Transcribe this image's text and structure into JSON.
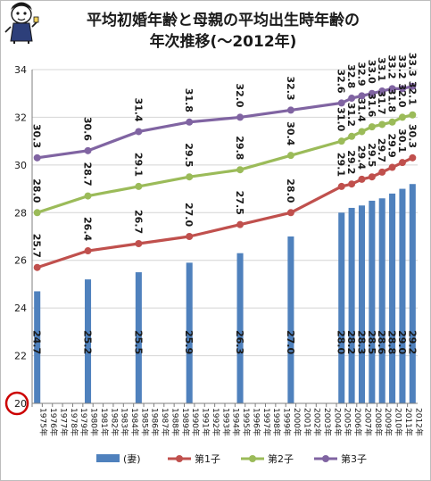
{
  "chart_data": {
    "type": "bar+line",
    "title": "平均初婚年齢と母親の平均出生時年齢の",
    "subtitle": "年次推移(〜2012年)",
    "ylim": [
      20,
      34
    ],
    "yticks": [
      "20",
      "22",
      "24",
      "26",
      "28",
      "30",
      "32",
      "34"
    ],
    "categories": [
      "1975年",
      "1976年",
      "1977年",
      "1978年",
      "1979年",
      "1980年",
      "1981年",
      "1982年",
      "1983年",
      "1984年",
      "1985年",
      "1986年",
      "1987年",
      "1988年",
      "1989年",
      "1990年",
      "1991年",
      "1992年",
      "1993年",
      "1994年",
      "1995年",
      "1996年",
      "1997年",
      "1998年",
      "1999年",
      "2000年",
      "2001年",
      "2002年",
      "2003年",
      "2004年",
      "2005年",
      "2006年",
      "2007年",
      "2008年",
      "2009年",
      "2010年",
      "2011年",
      "2012年"
    ],
    "bar_series": {
      "name": "(妻)",
      "color": "#4f81bd",
      "points": [
        {
          "x": "1975年",
          "y": 24.7,
          "label": "24.7"
        },
        {
          "x": "1980年",
          "y": 25.2,
          "label": "25.2"
        },
        {
          "x": "1985年",
          "y": 25.5,
          "label": "25.5"
        },
        {
          "x": "1990年",
          "y": 25.9,
          "label": "25.9"
        },
        {
          "x": "1995年",
          "y": 26.3,
          "label": "26.3"
        },
        {
          "x": "2000年",
          "y": 27.0,
          "label": "27.0"
        },
        {
          "x": "2005年",
          "y": 28.0,
          "label": "28.0"
        },
        {
          "x": "2006年",
          "y": 28.2,
          "label": "28.2"
        },
        {
          "x": "2007年",
          "y": 28.3,
          "label": "28.3"
        },
        {
          "x": "2008年",
          "y": 28.5,
          "label": "28.5"
        },
        {
          "x": "2009年",
          "y": 28.6,
          "label": "28.6"
        },
        {
          "x": "2010年",
          "y": 28.8,
          "label": "28.8"
        },
        {
          "x": "2011年",
          "y": 29.0,
          "label": "29.0"
        },
        {
          "x": "2012年",
          "y": 29.2,
          "label": "29.2"
        }
      ]
    },
    "line_series": [
      {
        "name": "第1子",
        "color": "#c0504d",
        "points": [
          {
            "x": "1975年",
            "y": 25.7,
            "label": "25.7"
          },
          {
            "x": "1980年",
            "y": 26.4,
            "label": "26.4"
          },
          {
            "x": "1985年",
            "y": 26.7,
            "label": "26.7"
          },
          {
            "x": "1990年",
            "y": 27.0,
            "label": "27.0"
          },
          {
            "x": "1995年",
            "y": 27.5,
            "label": "27.5"
          },
          {
            "x": "2000年",
            "y": 28.0,
            "label": "28.0"
          },
          {
            "x": "2005年",
            "y": 29.1,
            "label": "29.1"
          },
          {
            "x": "2006年",
            "y": 29.2,
            "label": "29.2"
          },
          {
            "x": "2007年",
            "y": 29.4,
            "label": "29.4"
          },
          {
            "x": "2008年",
            "y": 29.5,
            "label": "29.5"
          },
          {
            "x": "2009年",
            "y": 29.7,
            "label": "29.7"
          },
          {
            "x": "2010年",
            "y": 29.9,
            "label": "29.9"
          },
          {
            "x": "2011年",
            "y": 30.1,
            "label": "30.1"
          },
          {
            "x": "2012年",
            "y": 30.3,
            "label": "30.3"
          }
        ]
      },
      {
        "name": "第2子",
        "color": "#9bbb59",
        "points": [
          {
            "x": "1975年",
            "y": 28.0,
            "label": "28.0"
          },
          {
            "x": "1980年",
            "y": 28.7,
            "label": "28.7"
          },
          {
            "x": "1985年",
            "y": 29.1,
            "label": "29.1"
          },
          {
            "x": "1990年",
            "y": 29.5,
            "label": "29.5"
          },
          {
            "x": "1995年",
            "y": 29.8,
            "label": "29.8"
          },
          {
            "x": "2000年",
            "y": 30.4,
            "label": "30.4"
          },
          {
            "x": "2005年",
            "y": 31.0,
            "label": "31.0"
          },
          {
            "x": "2006年",
            "y": 31.2,
            "label": "31.2"
          },
          {
            "x": "2007年",
            "y": 31.4,
            "label": "31.4"
          },
          {
            "x": "2008年",
            "y": 31.6,
            "label": "31.6"
          },
          {
            "x": "2009年",
            "y": 31.7,
            "label": "31.7"
          },
          {
            "x": "2010年",
            "y": 31.8,
            "label": "31.8"
          },
          {
            "x": "2011年",
            "y": 32.0,
            "label": "32.0"
          },
          {
            "x": "2012年",
            "y": 32.1,
            "label": "32.1"
          }
        ]
      },
      {
        "name": "第3子",
        "color": "#8064a2",
        "points": [
          {
            "x": "1975年",
            "y": 30.3,
            "label": "30.3"
          },
          {
            "x": "1980年",
            "y": 30.6,
            "label": "30.6"
          },
          {
            "x": "1985年",
            "y": 31.4,
            "label": "31.4"
          },
          {
            "x": "1990年",
            "y": 31.8,
            "label": "31.8"
          },
          {
            "x": "1995年",
            "y": 32.0,
            "label": "32.0"
          },
          {
            "x": "2000年",
            "y": 32.3,
            "label": "32.3"
          },
          {
            "x": "2005年",
            "y": 32.6,
            "label": "32.6"
          },
          {
            "x": "2006年",
            "y": 32.8,
            "label": "32.8"
          },
          {
            "x": "2007年",
            "y": 32.9,
            "label": "32.9"
          },
          {
            "x": "2008年",
            "y": 33.0,
            "label": "33.0"
          },
          {
            "x": "2009年",
            "y": 33.1,
            "label": "33.1"
          },
          {
            "x": "2010年",
            "y": 33.2,
            "label": "33.2"
          },
          {
            "x": "2011年",
            "y": 33.2,
            "label": "33.2"
          },
          {
            "x": "2012年",
            "y": 33.3,
            "label": "33.3"
          }
        ]
      }
    ],
    "grid": "horizontal",
    "legend": "bottom",
    "highlight_tick": {
      "value": "20",
      "color": "#cc0000"
    }
  }
}
